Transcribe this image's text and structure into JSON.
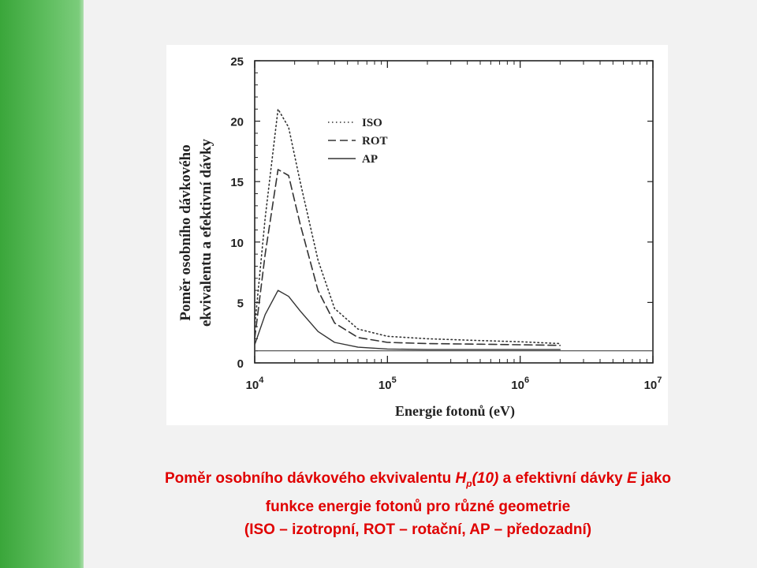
{
  "caption": {
    "part1": "Poměr osobního dávkového ekvivalentu ",
    "hp_main": "H",
    "hp_sub": "p",
    "hp_arg": "(10)",
    "part2": " a efektivní dávky ",
    "e_symbol": "E",
    "part3": " jako funkce energie fotonů pro různé geometrie",
    "line3": "(ISO – izotropní, ROT – rotační, AP – předozadní)"
  },
  "colors": {
    "caption": "#e00000",
    "sidebar": "#4cb04c",
    "series": "#333333"
  },
  "chart_data": {
    "type": "line",
    "xlabel": "Energie fotonů (eV)",
    "ylabel_line1": "Poměr osobního dávkového",
    "ylabel_line2": "ekvivalentu a efektivní dávky",
    "x_scale": "log",
    "xlim": [
      10000,
      10000000
    ],
    "ylim": [
      0,
      25
    ],
    "x_ticks": [
      {
        "base": "10",
        "exp": "4"
      },
      {
        "base": "10",
        "exp": "5"
      },
      {
        "base": "10",
        "exp": "6"
      },
      {
        "base": "10",
        "exp": "7"
      }
    ],
    "y_ticks": [
      "0",
      "5",
      "10",
      "15",
      "20",
      "25"
    ],
    "reference_line": 1,
    "legend_position": "top-center",
    "series": [
      {
        "name": "ISO",
        "style": "dotted",
        "x": [
          10000,
          12000,
          15000,
          18000,
          22000,
          30000,
          40000,
          60000,
          100000,
          200000,
          500000,
          1000000,
          2000000
        ],
        "y": [
          3.0,
          12.0,
          21.0,
          19.5,
          15.0,
          8.5,
          4.5,
          2.8,
          2.2,
          2.0,
          1.85,
          1.75,
          1.6
        ]
      },
      {
        "name": "ROT",
        "style": "dashed",
        "x": [
          10000,
          12000,
          15000,
          18000,
          22000,
          30000,
          40000,
          60000,
          100000,
          200000,
          500000,
          1000000,
          2000000
        ],
        "y": [
          2.0,
          9.0,
          16.0,
          15.5,
          11.5,
          6.0,
          3.3,
          2.1,
          1.7,
          1.6,
          1.55,
          1.5,
          1.45
        ]
      },
      {
        "name": "AP",
        "style": "solid",
        "x": [
          10000,
          12000,
          15000,
          18000,
          22000,
          30000,
          40000,
          60000,
          100000,
          200000,
          500000,
          1000000,
          2000000
        ],
        "y": [
          1.5,
          4.0,
          6.0,
          5.5,
          4.3,
          2.6,
          1.7,
          1.3,
          1.15,
          1.1,
          1.1,
          1.1,
          1.1
        ]
      }
    ]
  }
}
